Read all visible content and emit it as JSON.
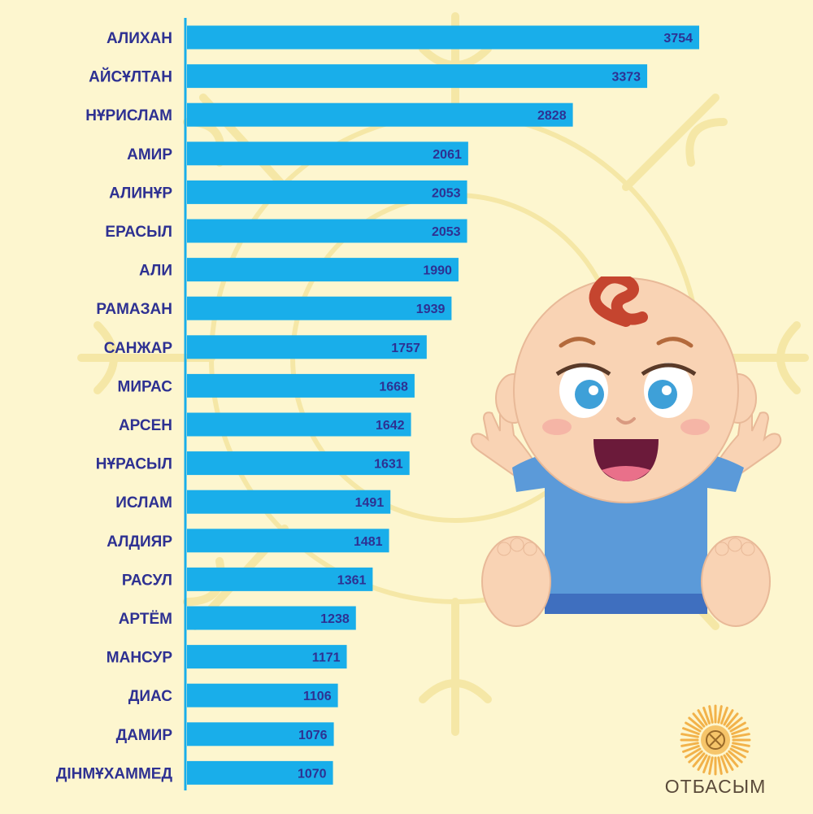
{
  "chart_data": {
    "type": "bar",
    "orientation": "horizontal",
    "categories": [
      "АЛИХАН",
      "АЙСҰЛТАН",
      "НҰРИСЛАМ",
      "АМИР",
      "АЛИНҰР",
      "ЕРАСЫЛ",
      "АЛИ",
      "РАМАЗАН",
      "САНЖАР",
      "МИРАС",
      "АРСЕН",
      "НҰРАСЫЛ",
      "ИСЛАМ",
      "АЛДИЯР",
      "РАСУЛ",
      "АРТЁМ",
      "МАНСУР",
      "ДИАС",
      "ДАМИР",
      "ДІНМҰХАММЕД"
    ],
    "values": [
      3754,
      3373,
      2828,
      2061,
      2053,
      2053,
      1990,
      1939,
      1757,
      1668,
      1642,
      1631,
      1491,
      1481,
      1361,
      1238,
      1171,
      1106,
      1076,
      1070
    ],
    "title": "",
    "xlabel": "",
    "ylabel": "",
    "xlim": [
      0,
      3754
    ],
    "grid": false,
    "bar_color": "#19aeea",
    "label_color": "#2e3192"
  },
  "logo": {
    "text": "ОТБАСЫМ",
    "badge": "KZ"
  },
  "colors": {
    "background": "#fdf6cf",
    "ornament": "#f7e9a8",
    "axis": "#19aeea"
  },
  "illustration": {
    "name": "baby-illustration"
  }
}
